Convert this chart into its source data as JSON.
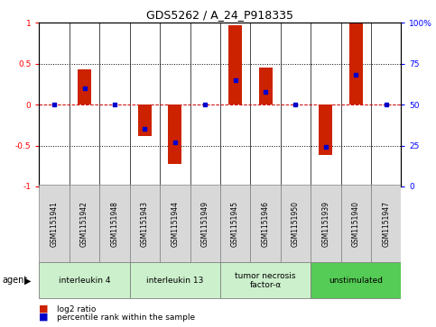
{
  "title": "GDS5262 / A_24_P918335",
  "samples": [
    "GSM1151941",
    "GSM1151942",
    "GSM1151948",
    "GSM1151943",
    "GSM1151944",
    "GSM1151949",
    "GSM1151945",
    "GSM1151946",
    "GSM1151950",
    "GSM1151939",
    "GSM1151940",
    "GSM1151947"
  ],
  "log2_ratio": [
    0.0,
    0.43,
    0.0,
    -0.38,
    -0.73,
    0.0,
    0.97,
    0.45,
    0.0,
    -0.62,
    0.99,
    0.0
  ],
  "percentile_rank": [
    50,
    60,
    50,
    35,
    27,
    50,
    65,
    58,
    50,
    24,
    68,
    50
  ],
  "agents": [
    {
      "label": "interleukin 4",
      "start": 0,
      "end": 3,
      "color": "#ccf0cc"
    },
    {
      "label": "interleukin 13",
      "start": 3,
      "end": 6,
      "color": "#ccf0cc"
    },
    {
      "label": "tumor necrosis\nfactor-α",
      "start": 6,
      "end": 9,
      "color": "#ccf0cc"
    },
    {
      "label": "unstimulated",
      "start": 9,
      "end": 12,
      "color": "#55cc55"
    }
  ],
  "ylim": [
    -1.0,
    1.0
  ],
  "y2lim": [
    0,
    100
  ],
  "yticks_left": [
    -1,
    -0.5,
    0,
    0.5,
    1
  ],
  "yticks_right": [
    0,
    25,
    50,
    75,
    100
  ],
  "bar_color": "#cc2200",
  "dot_color": "#0000cc",
  "zero_line_color": "#cc0000",
  "bar_width": 0.45,
  "sample_box_color": "#d8d8d8",
  "title_fontsize": 9,
  "tick_fontsize": 6.5,
  "agent_fontsize": 6.5,
  "legend_fontsize": 6.5
}
